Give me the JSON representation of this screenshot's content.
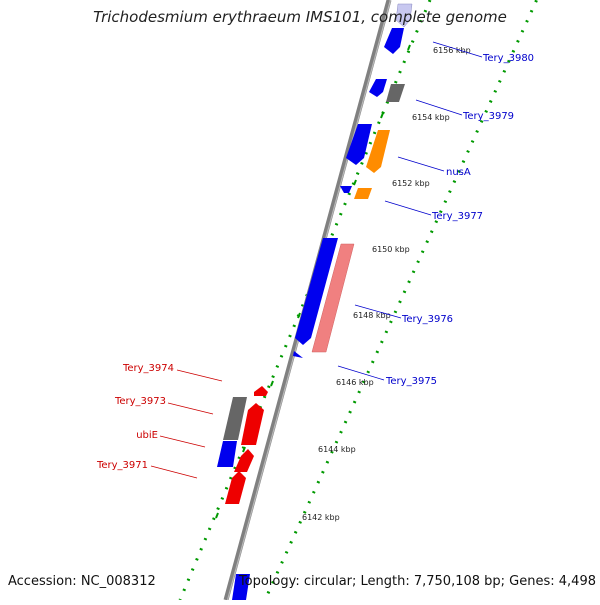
{
  "title": "Trichodesmium erythraeum IMS101, complete genome",
  "footer": {
    "accession": "Accession: NC_008312",
    "topology": "Topology: circular; Length: 7,750,108 bp; Genes: 4,498"
  },
  "colors": {
    "backbone": "#808080",
    "forward_gene": "#0000ee",
    "reverse_gene": "#ee0000",
    "grey_gene": "#666666",
    "orange_gene": "#ff8c00",
    "pink_gene": "#f08080",
    "lavender_gene": "#c8c8f0",
    "scale_dots": "#009900",
    "label_forward": "#0000cc",
    "label_reverse": "#cc0000"
  },
  "scale_ticks": [
    {
      "label": "6156 kbp"
    },
    {
      "label": "6154 kbp"
    },
    {
      "label": "6152 kbp"
    },
    {
      "label": "6150 kbp"
    },
    {
      "label": "6148 kbp"
    },
    {
      "label": "6146 kbp"
    },
    {
      "label": "6144 kbp"
    },
    {
      "label": "6142 kbp"
    }
  ],
  "gene_labels": {
    "forward": [
      "Tery_3980",
      "Tery_3979",
      "nusA",
      "Tery_3977",
      "Tery_3976",
      "Tery_3975"
    ],
    "reverse": [
      "Tery_3974",
      "Tery_3973",
      "ubiE",
      "Tery_3971"
    ]
  }
}
